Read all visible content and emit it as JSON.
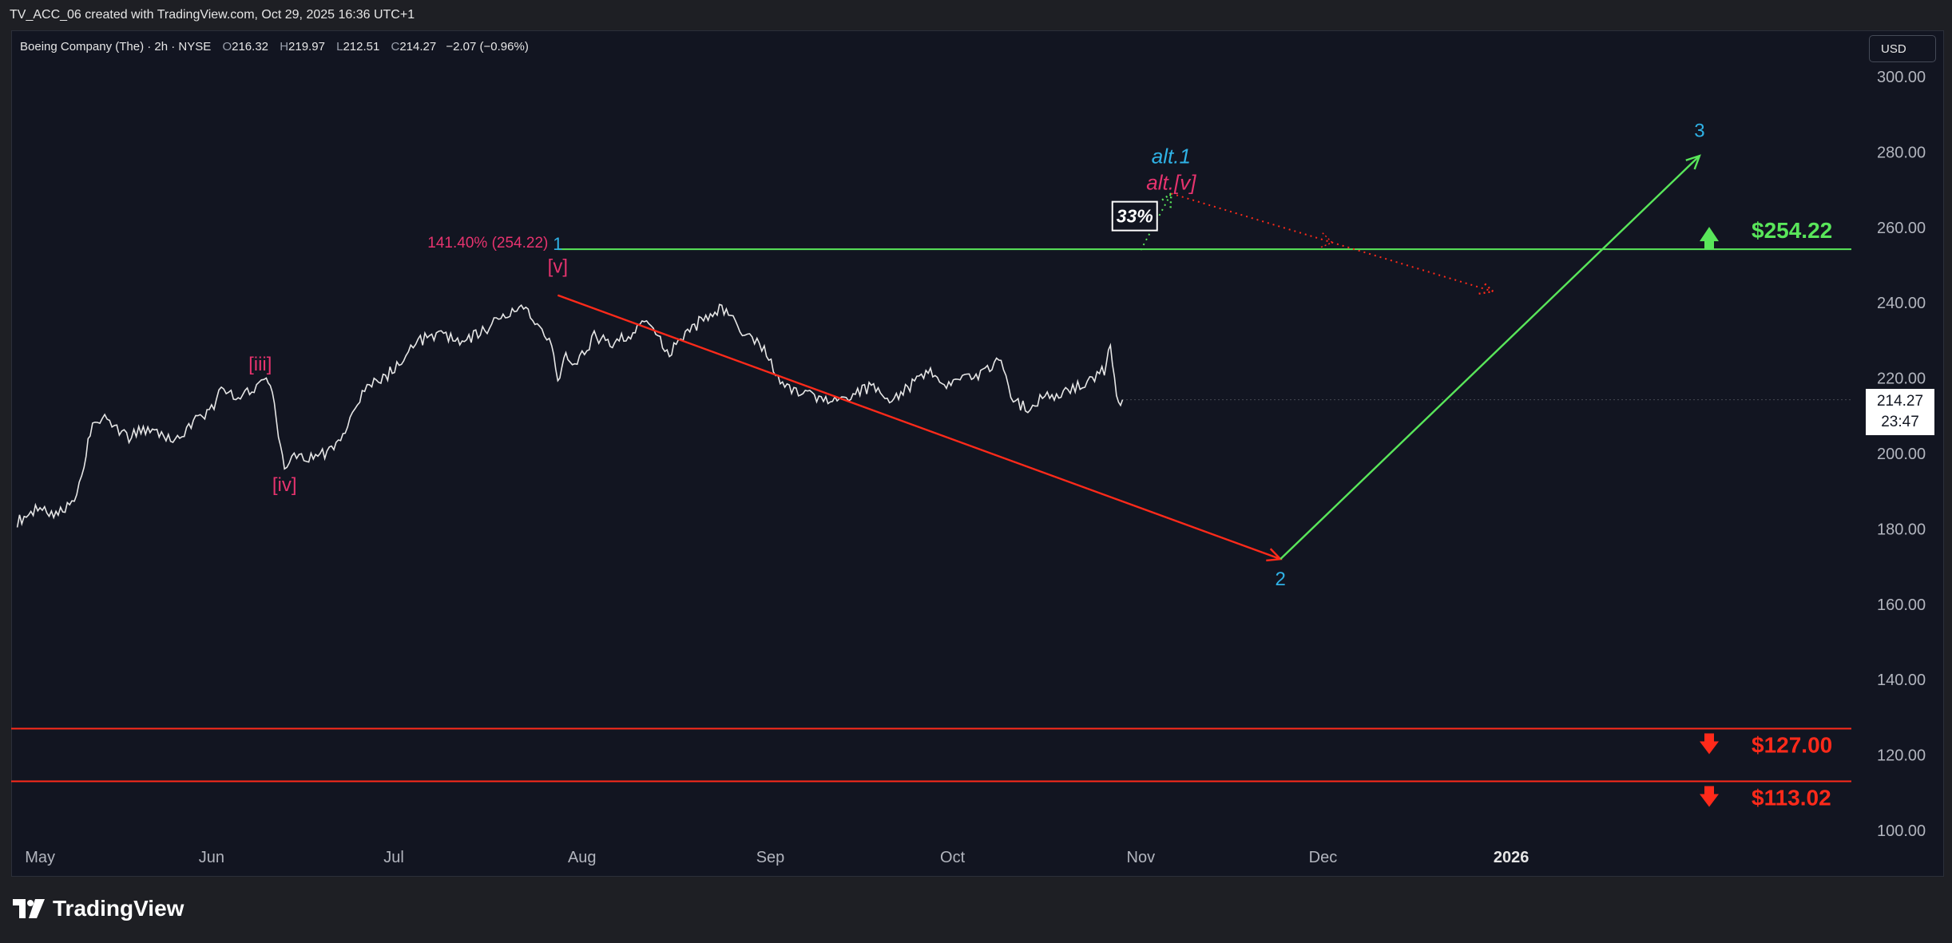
{
  "header": {
    "text": "TV_ACC_06 created with TradingView.com, Oct 29, 2025 16:36 UTC+1"
  },
  "symbol": {
    "name": "Boeing Company (The) · 2h · NYSE",
    "open_label": "O",
    "open": "216.32",
    "high_label": "H",
    "high": "219.97",
    "low_label": "L",
    "low": "212.51",
    "close_label": "C",
    "close": "214.27",
    "change": "−2.07 (−0.96%)"
  },
  "currency": "USD",
  "last_price": {
    "price": "214.27",
    "countdown": "23:47"
  },
  "colors": {
    "background": "#121521",
    "price_line": "#e6e6e6",
    "green": "#59e65a",
    "red": "#ff2a1a",
    "cyan": "#2fb2e6",
    "magenta": "#e6336e"
  },
  "chart_data": {
    "type": "line",
    "title": "",
    "xlabel": "",
    "ylabel": "",
    "y_axis_side": "right",
    "ylim": [
      100,
      300
    ],
    "y_ticks": [
      100,
      120,
      140,
      160,
      180,
      200,
      220,
      240,
      260,
      280,
      300
    ],
    "y_tick_labels": [
      "100.00",
      "120.00",
      "140.00",
      "160.00",
      "180.00",
      "200.00",
      "220.00",
      "240.00",
      "260.00",
      "280.00",
      "300.00"
    ],
    "x_ticks": [
      "May",
      "Jun",
      "Jul",
      "Aug",
      "Sep",
      "Oct",
      "Nov",
      "Dec",
      "2026"
    ],
    "x_tick_dates": [
      "2025-05-01",
      "2025-06-01",
      "2025-07-01",
      "2025-08-01",
      "2025-09-01",
      "2025-10-01",
      "2025-11-01",
      "2025-12-01",
      "2026-01-01"
    ],
    "grid": false,
    "series": [
      {
        "x": [
          "2025-04-30",
          "2025-05-03",
          "2025-05-06",
          "2025-05-09",
          "2025-05-11",
          "2025-05-12",
          "2025-05-14",
          "2025-05-16",
          "2025-05-18",
          "2025-05-20",
          "2025-05-23",
          "2025-05-26",
          "2025-05-29",
          "2025-06-01",
          "2025-06-03",
          "2025-06-05",
          "2025-06-08",
          "2025-06-10",
          "2025-06-11",
          "2025-06-12",
          "2025-06-13",
          "2025-06-15",
          "2025-06-17",
          "2025-06-20",
          "2025-06-23",
          "2025-06-25",
          "2025-06-27",
          "2025-06-30",
          "2025-07-03",
          "2025-07-05",
          "2025-07-08",
          "2025-07-10",
          "2025-07-13",
          "2025-07-16",
          "2025-07-19",
          "2025-07-22",
          "2025-07-25",
          "2025-07-27",
          "2025-07-28",
          "2025-07-29",
          "2025-07-30",
          "2025-08-01",
          "2025-08-03",
          "2025-08-06",
          "2025-08-09",
          "2025-08-12",
          "2025-08-15",
          "2025-08-18",
          "2025-08-21",
          "2025-08-24",
          "2025-08-27",
          "2025-08-29",
          "2025-08-31",
          "2025-09-03",
          "2025-09-06",
          "2025-09-09",
          "2025-09-12",
          "2025-09-15",
          "2025-09-18",
          "2025-09-21",
          "2025-09-24",
          "2025-09-27",
          "2025-09-30",
          "2025-10-03",
          "2025-10-06",
          "2025-10-09",
          "2025-10-11",
          "2025-10-13",
          "2025-10-15",
          "2025-10-17",
          "2025-10-20",
          "2025-10-22",
          "2025-10-24",
          "2025-10-26",
          "2025-10-27",
          "2025-10-28",
          "2025-10-29"
        ],
        "y": [
          182,
          185,
          184,
          187,
          196,
          206,
          210,
          208,
          204,
          206,
          205,
          203,
          208,
          212,
          218,
          214,
          217,
          219,
          216,
          205,
          195,
          200,
          199,
          200,
          206,
          214,
          218,
          221,
          226,
          230,
          231,
          231,
          230,
          233,
          236,
          240,
          233,
          228,
          219,
          226,
          224,
          226,
          231,
          229,
          232,
          236,
          226,
          231,
          236,
          239,
          233,
          231,
          228,
          218,
          216,
          215,
          214,
          216,
          218,
          214,
          218,
          222,
          218,
          220,
          221,
          226,
          214,
          212,
          214,
          215,
          217,
          218,
          220,
          222,
          228,
          214,
          214.27
        ]
      }
    ],
    "levels": [
      {
        "label": "$254.22",
        "price": 254.22,
        "color": "#59e65a",
        "arrow": "up"
      },
      {
        "label": "$127.00",
        "price": 127.0,
        "color": "#ff2a1a",
        "arrow": "down"
      },
      {
        "label": "$113.02",
        "price": 113.02,
        "color": "#ff2a1a",
        "arrow": "down"
      }
    ],
    "fib_label": "141.40% (254.22)",
    "paths": [
      {
        "name": "red-wave-2-path",
        "color": "#ff2a1a",
        "dash": false,
        "points": [
          [
            "2025-07-28",
            242
          ],
          [
            "2025-11-24",
            172
          ]
        ]
      },
      {
        "name": "green-wave-3-path",
        "color": "#59e65a",
        "dash": false,
        "points": [
          [
            "2025-11-24",
            172
          ],
          [
            "2026-02-01",
            279
          ]
        ]
      },
      {
        "name": "green-alt-dotted-path",
        "color": "#59e65a",
        "dash": true,
        "points": [
          [
            "2025-11-01",
            254
          ],
          [
            "2025-11-06",
            269
          ]
        ]
      },
      {
        "name": "red-alt-dotted-path",
        "color": "#ff2a1a",
        "dash": true,
        "points": [
          [
            "2025-11-06",
            269
          ],
          [
            "2025-12-29",
            243
          ]
        ]
      }
    ],
    "annotations": [
      {
        "name": "wave-label-1",
        "text": "1",
        "date": "2025-07-28",
        "price": 254,
        "color": "#2fb2e6",
        "size": 22,
        "italic": false
      },
      {
        "name": "wave-label-v",
        "text": "[v]",
        "date": "2025-07-28",
        "price": 248,
        "color": "#e6336e",
        "size": 24,
        "italic": false
      },
      {
        "name": "wave-label-iii",
        "text": "[iii]",
        "date": "2025-06-09",
        "price": 222,
        "color": "#e6336e",
        "size": 24,
        "italic": false
      },
      {
        "name": "wave-label-iv",
        "text": "[iv]",
        "date": "2025-06-13",
        "price": 190,
        "color": "#e6336e",
        "size": 24,
        "italic": false
      },
      {
        "name": "wave-label-2",
        "text": "2",
        "date": "2025-11-24",
        "price": 165,
        "color": "#2fb2e6",
        "size": 24,
        "italic": false
      },
      {
        "name": "wave-label-3",
        "text": "3",
        "date": "2026-02-01",
        "price": 284,
        "color": "#2fb2e6",
        "size": 24,
        "italic": false
      },
      {
        "name": "alt-1-label",
        "text": "alt.1",
        "date": "2025-11-06",
        "price": 277,
        "color": "#2fb2e6",
        "size": 26,
        "italic": true
      },
      {
        "name": "alt-v-label",
        "text": "alt.[v]",
        "date": "2025-11-06",
        "price": 270,
        "color": "#e6336e",
        "size": 26,
        "italic": true
      }
    ],
    "probability": {
      "text": "33%",
      "date": "2025-10-31",
      "price": 263
    }
  }
}
